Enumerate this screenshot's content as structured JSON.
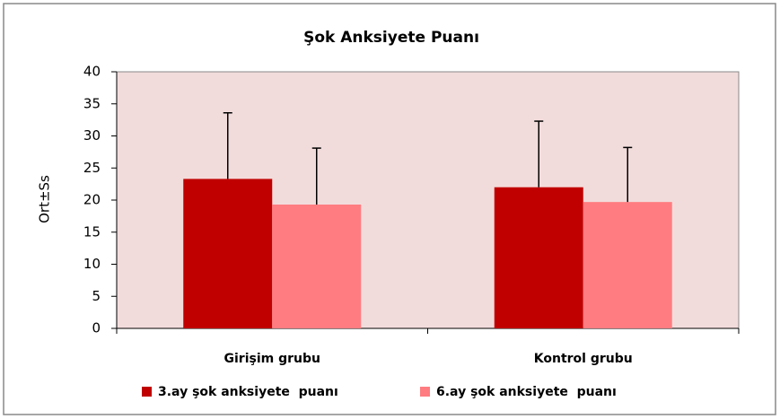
{
  "chart_data": {
    "type": "bar",
    "title": "Şok Anksiyete Puanı",
    "y_label": "Ort±Ss",
    "categories": [
      "Girişim grubu",
      "Kontrol grubu"
    ],
    "series": [
      {
        "name": "3.ay şok anksiyete  puanı",
        "color": "#c00000",
        "values": [
          23.3,
          22.0
        ],
        "errors": [
          10.3,
          10.3
        ]
      },
      {
        "name": "6.ay şok anksiyete  puanı",
        "color": "#ff7c80",
        "values": [
          19.3,
          19.7
        ],
        "errors": [
          8.8,
          8.5
        ]
      }
    ],
    "ylim": [
      0,
      40
    ],
    "yticks": [
      0,
      5,
      10,
      15,
      20,
      25,
      30,
      35,
      40
    ],
    "plot_background": "#f2dcdb",
    "legend": "bottom"
  }
}
